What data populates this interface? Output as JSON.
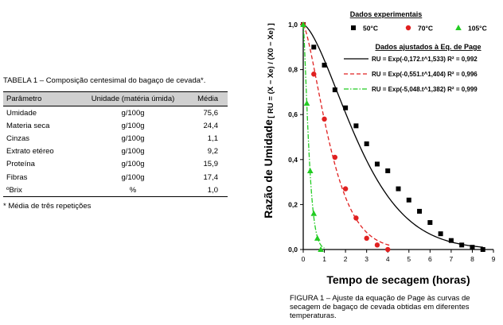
{
  "table": {
    "caption": "TABELA 1 – Composição centesimal do bagaço de cevada*.",
    "headers": [
      "Parâmetro",
      "Unidade (matéria úmida)",
      "Média"
    ],
    "rows": [
      [
        "Umidade",
        "g/100g",
        "75,6"
      ],
      [
        "Materia seca",
        "g/100g",
        "24,4"
      ],
      [
        "Cinzas",
        "g/100g",
        "1,1"
      ],
      [
        "Extrato etéreo",
        "g/100g",
        "9,2"
      ],
      [
        "Proteína",
        "g/100g",
        "15,9"
      ],
      [
        "Fibras",
        "g/100g",
        "17,4"
      ],
      [
        "ºBrix",
        "%",
        "1,0"
      ]
    ],
    "note": "* Média de três repetições"
  },
  "figure": {
    "caption": "FIGURA 1 – Ajuste da equação de Page às curvas de secagem de bagaço de cevada obtidas em diferentes temperaturas."
  },
  "chart_data": {
    "type": "scatter",
    "xlabel": "Tempo de secagem (horas)",
    "ylabel": "Razão de Umidade",
    "ylabel_formula": "[ RU = (X − Xe) / (X0 − Xe) ]",
    "xlim": [
      0,
      9
    ],
    "ylim": [
      0,
      1.0
    ],
    "x_ticks": [
      "0",
      "1",
      "2",
      "3",
      "4",
      "5",
      "6",
      "7",
      "8",
      "9"
    ],
    "y_ticks": [
      "0,0",
      "0,2",
      "0,4",
      "0,6",
      "0,8",
      "1,0"
    ],
    "legend_title_experimental": "Dados experimentais",
    "legend_title_fit": "Dados ajustados à Eq. de Page",
    "series": [
      {
        "name": "50°C",
        "marker": "square",
        "color": "#000000",
        "x": [
          0,
          0.5,
          1.0,
          1.5,
          2.0,
          2.5,
          3.0,
          3.5,
          4.0,
          4.5,
          5.0,
          5.5,
          6.0,
          6.5,
          7.0,
          7.5,
          8.0,
          8.5
        ],
        "y": [
          1.0,
          0.9,
          0.82,
          0.71,
          0.63,
          0.55,
          0.47,
          0.38,
          0.35,
          0.27,
          0.22,
          0.17,
          0.12,
          0.07,
          0.04,
          0.02,
          0.01,
          0.0
        ],
        "fit_label": "RU = Exp(-0,172.t^1,533)  R² = 0,992",
        "k": 0.172,
        "n": 1.533,
        "fit_style": "solid"
      },
      {
        "name": "70°C",
        "marker": "circle",
        "color": "#e02020",
        "x": [
          0,
          0.5,
          1.0,
          1.5,
          2.0,
          2.5,
          3.0,
          3.5,
          4.0
        ],
        "y": [
          1.0,
          0.78,
          0.58,
          0.41,
          0.27,
          0.14,
          0.05,
          0.02,
          0.0
        ],
        "fit_label": "RU = Exp(-0,551.t^1,404)  R² = 0,996",
        "k": 0.551,
        "n": 1.404,
        "fit_style": "dashed"
      },
      {
        "name": "105°C",
        "marker": "triangle",
        "color": "#22cc22",
        "x": [
          0,
          0.17,
          0.33,
          0.5,
          0.67,
          0.83
        ],
        "y": [
          1.0,
          0.65,
          0.35,
          0.16,
          0.05,
          0.0
        ],
        "fit_label": "RU = Exp(-5,048.t^1,382)  R² = 0,999",
        "k": 5.048,
        "n": 1.382,
        "fit_style": "dashdot"
      }
    ]
  }
}
